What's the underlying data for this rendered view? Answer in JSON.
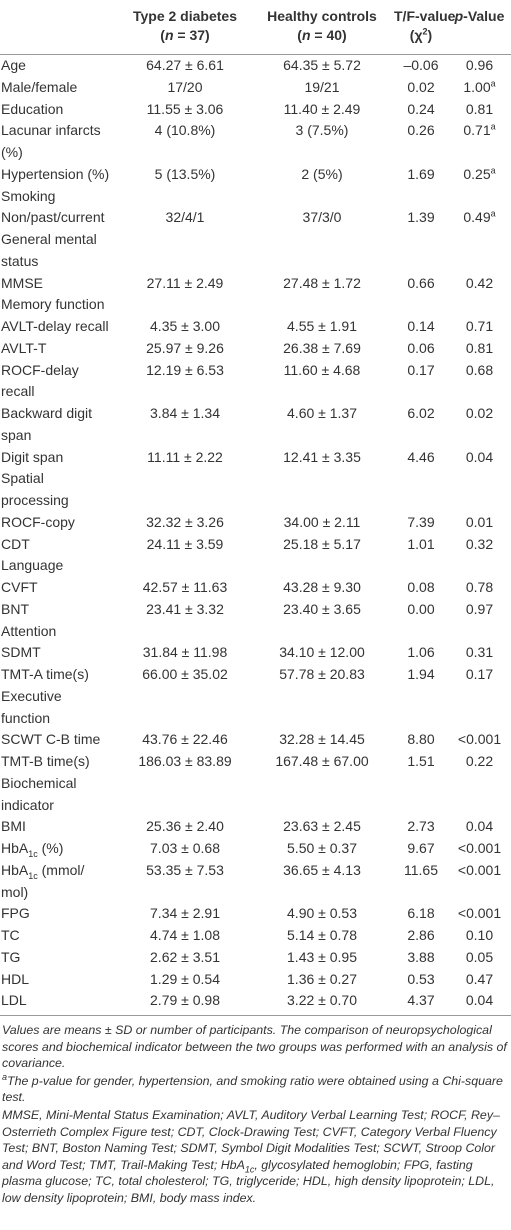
{
  "table": {
    "header": [
      [
        "Type 2 diabetes",
        [
          "(",
          {
            "i": "n"
          },
          " = 37)"
        ]
      ],
      [
        "Healthy controls",
        [
          "(",
          {
            "i": "n"
          },
          " = 40)"
        ]
      ],
      [
        "T/F-value",
        [
          "(χ",
          {
            "sup": "2"
          },
          ")"
        ]
      ],
      [
        [
          {
            "i": "p"
          },
          "-Value"
        ]
      ]
    ],
    "rows": [
      {
        "label": "Age",
        "cells": [
          "64.27 ± 6.61",
          "64.35 ± 5.72",
          "–0.06",
          "0.96"
        ]
      },
      {
        "label": "Male/female",
        "cells": [
          "17/20",
          "19/21",
          "0.02",
          {
            "text": "1.00",
            "sup": "a"
          }
        ]
      },
      {
        "label": "Education",
        "cells": [
          "11.55 ± 3.06",
          "11.40 ± 2.49",
          "0.24",
          "0.81"
        ]
      },
      {
        "label": {
          "lines": [
            "Lacunar infarcts",
            "(%)"
          ]
        },
        "cells": [
          "4 (10.8%)",
          "3 (7.5%)",
          "0.26",
          {
            "text": "0.71",
            "sup": "a"
          }
        ]
      },
      {
        "label": "Hypertension (%)",
        "cells": [
          "5 (13.5%)",
          "2 (5%)",
          "1.69",
          {
            "text": "0.25",
            "sup": "a"
          }
        ]
      },
      {
        "label": "Smoking"
      },
      {
        "label": "Non/past/current",
        "cells": [
          "32/4/1",
          "37/3/0",
          "1.39",
          {
            "text": "0.49",
            "sup": "a"
          }
        ]
      },
      {
        "label": {
          "lines": [
            "General mental",
            "status"
          ]
        }
      },
      {
        "label": "MMSE",
        "cells": [
          "27.11 ± 2.49",
          "27.48 ± 1.72",
          "0.66",
          "0.42"
        ]
      },
      {
        "label": "Memory function"
      },
      {
        "label": "AVLT-delay recall",
        "cells": [
          "4.35 ± 3.00",
          "4.55 ± 1.91",
          "0.14",
          "0.71"
        ]
      },
      {
        "label": "AVLT-T",
        "cells": [
          "25.97 ± 9.26",
          "26.38 ± 7.69",
          "0.06",
          "0.81"
        ]
      },
      {
        "label": {
          "lines": [
            "ROCF-delay",
            "recall"
          ]
        },
        "cells": [
          "12.19 ± 6.53",
          "11.60 ± 4.68",
          "0.17",
          "0.68"
        ]
      },
      {
        "label": {
          "lines": [
            "Backward digit",
            "span"
          ]
        },
        "cells": [
          "3.84 ± 1.34",
          "4.60 ± 1.37",
          "6.02",
          "0.02"
        ]
      },
      {
        "label": "Digit span",
        "cells": [
          "11.11 ± 2.22",
          "12.41 ± 3.35",
          "4.46",
          "0.04"
        ]
      },
      {
        "label": {
          "lines": [
            "Spatial",
            "processing"
          ]
        }
      },
      {
        "label": "ROCF-copy",
        "cells": [
          "32.32 ± 3.26",
          "34.00 ± 2.11",
          "7.39",
          "0.01"
        ]
      },
      {
        "label": "CDT",
        "cells": [
          "24.11 ± 3.59",
          "25.18 ± 5.17",
          "1.01",
          "0.32"
        ]
      },
      {
        "label": "Language"
      },
      {
        "label": "CVFT",
        "cells": [
          "42.57 ± 11.63",
          "43.28 ± 9.30",
          "0.08",
          "0.78"
        ]
      },
      {
        "label": "BNT",
        "cells": [
          "23.41 ± 3.32",
          "23.40 ± 3.65",
          "0.00",
          "0.97"
        ]
      },
      {
        "label": "Attention"
      },
      {
        "label": "SDMT",
        "cells": [
          "31.84 ± 11.98",
          "34.10 ± 12.00",
          "1.06",
          "0.31"
        ]
      },
      {
        "label": "TMT-A time(s)",
        "cells": [
          "66.00 ± 35.02",
          "57.78 ± 20.83",
          "1.94",
          "0.17"
        ]
      },
      {
        "label": {
          "lines": [
            "Executive",
            "function"
          ]
        }
      },
      {
        "label": "SCWT C-B time",
        "cells": [
          "43.76 ± 22.46",
          "32.28 ± 14.45",
          "8.80",
          "<0.001"
        ]
      },
      {
        "label": "TMT-B time(s)",
        "cells": [
          "186.03 ± 83.89",
          "167.48 ± 67.00",
          "1.51",
          "0.22"
        ]
      },
      {
        "label": {
          "lines": [
            "Biochemical",
            "indicator"
          ]
        }
      },
      {
        "label": "BMI",
        "cells": [
          "25.36 ± 2.40",
          "23.63 ± 2.45",
          "2.73",
          "0.04"
        ]
      },
      {
        "label": [
          "HbA",
          {
            "sub": "1c"
          },
          " (%)"
        ],
        "cells": [
          "7.03 ± 0.68",
          "5.50 ± 0.37",
          "9.67",
          "<0.001"
        ]
      },
      {
        "label": {
          "lines": [
            [
              "HbA",
              {
                "sub": "1c"
              },
              " (mmol/"
            ],
            "mol)"
          ]
        },
        "cells": [
          "53.35 ± 7.53",
          "36.65 ± 4.13",
          "11.65",
          "<0.001"
        ]
      },
      {
        "label": "FPG",
        "cells": [
          "7.34 ± 2.91",
          "4.90 ± 0.53",
          "6.18",
          "<0.001"
        ]
      },
      {
        "label": "TC",
        "cells": [
          "4.74 ± 1.08",
          "5.14 ± 0.78",
          "2.86",
          "0.10"
        ]
      },
      {
        "label": "TG",
        "cells": [
          "2.62 ± 3.51",
          "1.43 ± 0.95",
          "3.88",
          "0.05"
        ]
      },
      {
        "label": "HDL",
        "cells": [
          "1.29 ± 0.54",
          "1.36 ± 0.27",
          "0.53",
          "0.47"
        ]
      },
      {
        "label": "LDL",
        "cells": [
          "2.79 ± 0.98",
          "3.22 ± 0.70",
          "4.37",
          "0.04"
        ]
      }
    ]
  },
  "footnotes": [
    "Values are means ± SD or number of participants. The comparison of neuropsychological scores and biochemical indicator between the two groups was performed with an analysis of covariance.",
    [
      {
        "sup": "a"
      },
      "The p-value for gender, hypertension, and smoking ratio were obtained using a Chi-square test."
    ],
    [
      "MMSE, Mini-Mental Status Examination; AVLT, Auditory Verbal Learning Test; ROCF, Rey–Osterrieth Complex Figure test; CDT, Clock-Drawing Test; CVFT, Category Verbal Fluency Test; BNT, Boston Naming Test; SDMT, Symbol Digit Modalities Test; SCWT, Stroop Color and Word Test; TMT, Trail-Making Test; HbA",
      {
        "sub": "1c"
      },
      ", glycosylated hemoglobin; FPG, fasting plasma glucose; TC, total cholesterol; TG, triglyceride; HDL, high density lipoprotein; LDL, low density lipoprotein; BMI, body mass index."
    ]
  ]
}
